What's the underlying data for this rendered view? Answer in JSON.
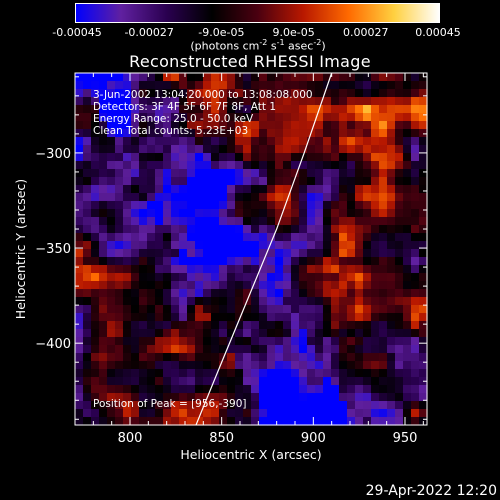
{
  "colorbar": {
    "ticks": [
      "-0.00045",
      "-0.00027",
      "-9.0e-05",
      "9.0e-05",
      "0.00027",
      "0.00045"
    ],
    "units_prefix": "(photons cm",
    "units_exp1": "-2",
    "units_mid1": " s",
    "units_exp2": "-1",
    "units_mid2": " asec",
    "units_exp3": "-2",
    "units_suffix": ")",
    "colors": [
      "#0000ff",
      "#6020a0",
      "#2a0050",
      "#000000",
      "#4a0010",
      "#b81800",
      "#ff6a00",
      "#ffd040",
      "#ffffff"
    ]
  },
  "chart_data": {
    "type": "heatmap",
    "title": "Reconstructed RHESSI Image",
    "xlabel": "Heliocentric X (arcsec)",
    "ylabel": "Heliocentric Y (arcsec)",
    "xlim": [
      770,
      962
    ],
    "ylim": [
      -443,
      -258
    ],
    "xticks": [
      800,
      850,
      900,
      950
    ],
    "yticks": [
      -300,
      -350,
      -400
    ],
    "value_range": [
      -0.00045,
      0.00045
    ],
    "limb_curve": [
      [
        836,
        -443
      ],
      [
        850,
        -410
      ],
      [
        865,
        -375
      ],
      [
        880,
        -340
      ],
      [
        895,
        -300
      ],
      [
        910,
        -258
      ]
    ],
    "peak": [
      956,
      -390
    ]
  },
  "info": {
    "line1": "3-Jun-2002 13:04:20.000 to 13:08:08.000",
    "line2": "Detectors: 3F 4F 5F 6F 7F 8F, Att 1",
    "line3": "Energy Range: 25.0 - 50.0 keV",
    "line4": "Clean     Total counts: 5.23E+03",
    "peak_label": "Position of Peak = [956,-390]"
  },
  "footer": "29-Apr-2022 12:20"
}
